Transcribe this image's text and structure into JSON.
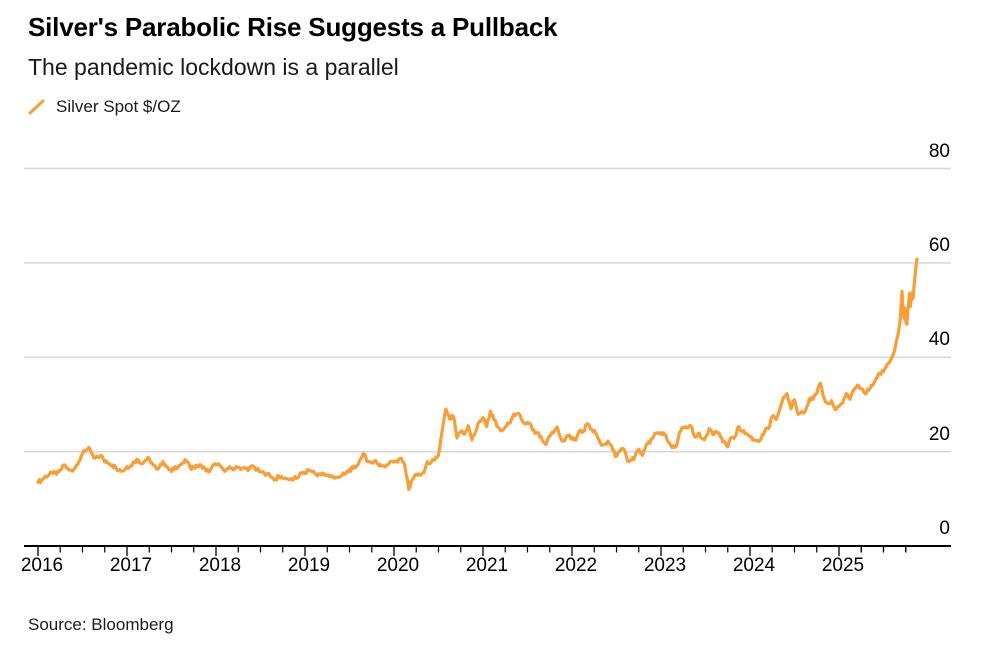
{
  "header": {
    "title": "Silver's Parabolic Rise Suggests a Pullback",
    "subtitle": "The pandemic lockdown is a parallel"
  },
  "legend": {
    "label": "Silver Spot $/OZ"
  },
  "source": {
    "text": "Source: Bloomberg"
  },
  "colors": {
    "line": "#F79E39",
    "grid": "#D8D8D8",
    "axis": "#000000",
    "text": "#000000"
  },
  "chart_data": {
    "type": "line",
    "title": "Silver's Parabolic Rise Suggests a Pullback",
    "subtitle": "The pandemic lockdown is a parallel",
    "series_name": "Silver Spot $/OZ",
    "xlabel": "",
    "ylabel": "Silver Spot $/OZ",
    "ylim": [
      0,
      80
    ],
    "y_ticks": [
      0,
      20,
      40,
      60,
      80
    ],
    "x_tick_years": [
      2016,
      2017,
      2018,
      2019,
      2020,
      2021,
      2022,
      2023,
      2024,
      2025
    ],
    "x_minor_ticks_per_year": 3,
    "x_range_years": [
      2016.0,
      2026.05
    ],
    "grid": "horizontal",
    "legend_position": "top-left",
    "series": {
      "start_year_offset": 0,
      "step_years": 0.0416667,
      "values": [
        13.5,
        14.0,
        14.8,
        15.1,
        15.4,
        15.2,
        16.1,
        17.2,
        16.4,
        16.0,
        16.5,
        17.9,
        19.6,
        20.3,
        20.6,
        18.7,
        19.0,
        19.2,
        17.8,
        17.6,
        17.2,
        16.6,
        16.2,
        15.9,
        16.8,
        17.0,
        17.9,
        18.3,
        17.4,
        18.2,
        18.5,
        17.2,
        16.3,
        17.3,
        17.6,
        16.6,
        15.8,
        16.8,
        17.0,
        17.6,
        18.0,
        16.7,
        16.7,
        16.8,
        17.1,
        16.5,
        15.7,
        16.9,
        17.2,
        17.1,
        16.2,
        16.4,
        16.5,
        16.3,
        16.7,
        16.4,
        16.4,
        16.4,
        16.9,
        16.1,
        15.8,
        15.5,
        15.4,
        14.5,
        14.2,
        14.7,
        14.4,
        14.3,
        14.1,
        14.2,
        14.5,
        15.5,
        15.6,
        16.0,
        15.8,
        15.2,
        15.3,
        15.1,
        15.0,
        14.9,
        14.4,
        14.6,
        15.0,
        15.3,
        16.2,
        16.4,
        17.0,
        18.4,
        19.5,
        17.9,
        17.6,
        18.1,
        17.0,
        17.0,
        17.2,
        17.9,
        18.0,
        17.8,
        18.6,
        16.7,
        12.0,
        14.1,
        15.2,
        15.0,
        15.5,
        17.9,
        17.7,
        18.2,
        19.3,
        24.4,
        29.0,
        26.9,
        27.5,
        22.9,
        24.3,
        23.7,
        25.5,
        22.5,
        24.2,
        26.4,
        27.2,
        25.3,
        28.6,
        26.7,
        25.2,
        24.4,
        25.2,
        26.0,
        27.5,
        28.0,
        27.7,
        26.1,
        26.2,
        25.5,
        23.9,
        24.0,
        22.4,
        21.5,
        23.3,
        24.0,
        25.2,
        22.8,
        22.3,
        23.3,
        23.0,
        22.4,
        24.4,
        24.3,
        25.8,
        24.8,
        24.5,
        22.8,
        21.3,
        21.7,
        21.9,
        20.3,
        19.0,
        20.2,
        20.5,
        18.0,
        18.2,
        19.0,
        20.5,
        19.2,
        21.5,
        21.8,
        23.2,
        24.0,
        24.0,
        23.6,
        22.0,
        20.9,
        21.0,
        24.1,
        25.1,
        25.0,
        25.5,
        23.3,
        23.8,
        22.8,
        23.0,
        24.9,
        23.6,
        24.2,
        23.2,
        22.2,
        21.0,
        23.0,
        23.3,
        25.3,
        24.2,
        23.8,
        23.2,
        22.6,
        22.4,
        22.7,
        24.4,
        24.9,
        27.5,
        26.8,
        28.9,
        31.5,
        32.3,
        29.1,
        31.0,
        27.9,
        28.5,
        28.8,
        31.2,
        31.1,
        32.3,
        34.5,
        31.3,
        30.2,
        30.8,
        28.9,
        29.6,
        30.3,
        32.3,
        31.1,
        33.0,
        34.1,
        33.3,
        32.3,
        33.0,
        34.0,
        35.5,
        36.5,
        37.0,
        38.5,
        39.5,
        41.5
      ],
      "tail": [
        [
          9.646,
          43.5
        ],
        [
          9.667,
          45.2
        ],
        [
          9.688,
          48.0
        ],
        [
          9.708,
          54.0
        ],
        [
          9.718,
          50.2
        ],
        [
          9.729,
          48.3
        ],
        [
          9.74,
          50.5
        ],
        [
          9.752,
          47.5
        ],
        [
          9.762,
          47.0
        ],
        [
          9.773,
          49.5
        ],
        [
          9.792,
          53.5
        ],
        [
          9.802,
          50.8
        ],
        [
          9.812,
          52.2
        ],
        [
          9.823,
          53.8
        ],
        [
          9.833,
          52.5
        ],
        [
          9.844,
          55.2
        ],
        [
          9.854,
          57.0
        ],
        [
          9.865,
          59.2
        ],
        [
          9.876,
          60.8
        ]
      ]
    }
  }
}
